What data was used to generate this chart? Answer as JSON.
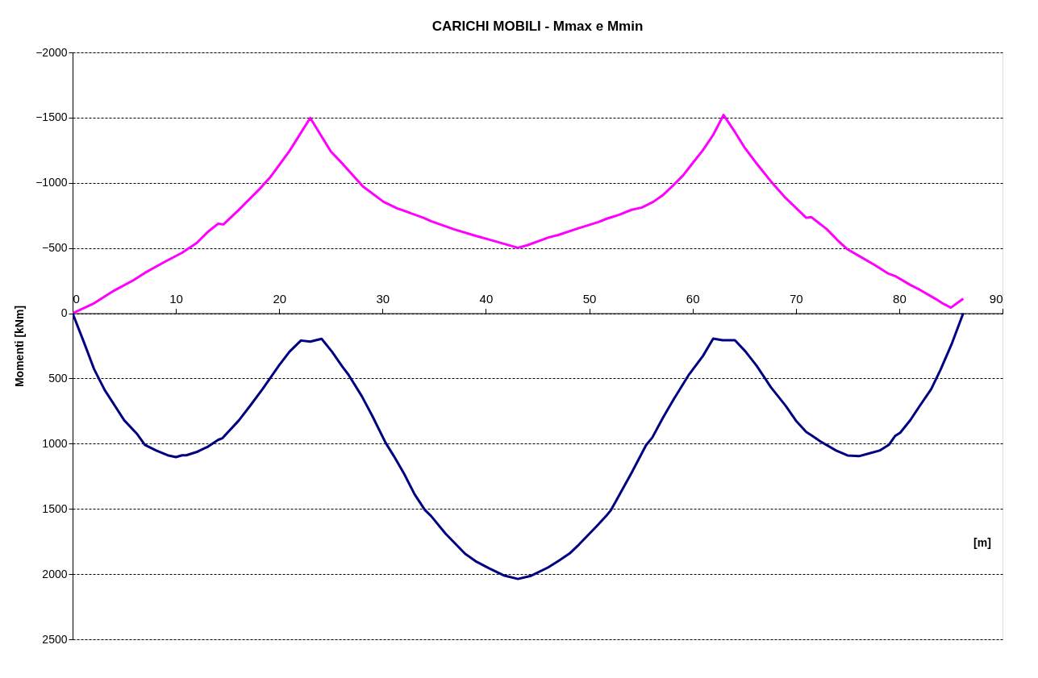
{
  "chart_data": {
    "type": "line",
    "title": "CARICHI  MOBILI - Mmax e Mmin",
    "xlabel": "[m]",
    "ylabel": "Momenti  [kNm]",
    "xlim": [
      0,
      90
    ],
    "xticks": [
      0,
      10,
      20,
      30,
      40,
      50,
      60,
      70,
      80,
      90
    ],
    "ylim": [
      2500,
      -2000
    ],
    "yticks": [
      -2000,
      -1500,
      -1000,
      -500,
      0,
      500,
      1000,
      1500,
      2000,
      2500
    ],
    "grid": "y",
    "marker": "none",
    "line_style": "solid",
    "series": [
      {
        "color": "#ff00ff",
        "x": [
          0,
          2.1,
          4,
          5.9,
          7,
          9.1,
          10.6,
          12,
          13.1,
          14.1,
          14.6,
          16,
          18.1,
          19.1,
          21,
          23,
          25,
          26.2,
          28.1,
          30.1,
          31.4,
          34,
          34.7,
          36.9,
          39,
          40.1,
          43.1,
          44,
          46.1,
          47,
          48.9,
          50.9,
          51.7,
          52.9,
          54.1,
          55.1,
          56.2,
          57.1,
          58.2,
          59.1,
          60,
          61,
          62,
          63,
          64.1,
          65,
          66.1,
          67.6,
          69,
          71,
          71.5,
          73,
          74.1,
          75,
          76.1,
          77.6,
          78.9,
          79.7,
          81.1,
          82,
          83.5,
          84.2,
          85,
          86.2
        ],
        "values": [
          0,
          -77,
          -173,
          -254,
          -310,
          -402,
          -464,
          -538,
          -625,
          -687,
          -681,
          -786,
          -953,
          -1040,
          -1245,
          -1498,
          -1240,
          -1140,
          -972,
          -854,
          -805,
          -731,
          -706,
          -644,
          -594,
          -570,
          -502,
          -521,
          -582,
          -600,
          -650,
          -700,
          -725,
          -755,
          -793,
          -811,
          -854,
          -904,
          -986,
          -1058,
          -1150,
          -1250,
          -1368,
          -1520,
          -1390,
          -1275,
          -1158,
          -1010,
          -885,
          -732,
          -737,
          -644,
          -555,
          -490,
          -440,
          -371,
          -306,
          -282,
          -216,
          -180,
          -111,
          -76,
          -43,
          -112
        ]
      },
      {
        "color": "#000080",
        "x": [
          0,
          1.1,
          2.1,
          3.1,
          5,
          6.2,
          7,
          8.1,
          9.2,
          10,
          10.6,
          11,
          12.1,
          13.1,
          14.1,
          14.5,
          16.1,
          17.1,
          18.4,
          20,
          21,
          22.1,
          23,
          24.1,
          25.1,
          26.1,
          26.7,
          28,
          29,
          30.3,
          31.1,
          32.1,
          33.1,
          34.1,
          34.7,
          36.1,
          38,
          39,
          40.3,
          41.8,
          43.1,
          44.3,
          46,
          47,
          48.1,
          49,
          50.7,
          51.6,
          52.1,
          54.1,
          55.5,
          56.1,
          57.1,
          58.2,
          59.6,
          61,
          62,
          62.9,
          64.1,
          65.1,
          66.2,
          67.6,
          69,
          70,
          71,
          71.6,
          72.4,
          73.9,
          75,
          76.1,
          77,
          78.1,
          79,
          79.6,
          80.1,
          81.1,
          82,
          83.1,
          84,
          85.1,
          86.2
        ],
        "values": [
          0,
          223,
          432,
          588,
          821,
          922,
          1009,
          1053,
          1089,
          1103,
          1089,
          1089,
          1061,
          1023,
          970,
          958,
          821,
          718,
          580,
          398,
          294,
          209,
          218,
          196,
          294,
          408,
          471,
          637,
          786,
          994,
          1096,
          1233,
          1388,
          1509,
          1555,
          1690,
          1845,
          1901,
          1955,
          2012,
          2037,
          2015,
          1950,
          1901,
          1842,
          1774,
          1635,
          1558,
          1510,
          1223,
          1012,
          954,
          806,
          656,
          477,
          328,
          195,
          207,
          207,
          291,
          402,
          569,
          708,
          823,
          910,
          941,
          984,
          1053,
          1090,
          1096,
          1077,
          1053,
          1009,
          941,
          916,
          817,
          709,
          582,
          433,
          232,
          0
        ]
      }
    ]
  }
}
